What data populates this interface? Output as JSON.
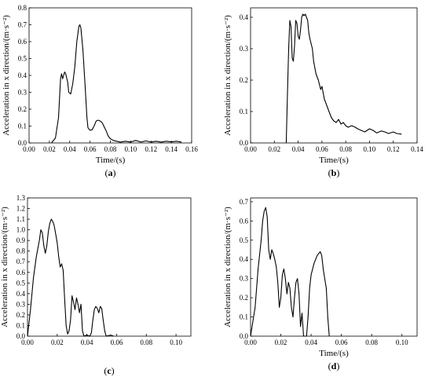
{
  "figure": {
    "background": "#ffffff",
    "line_color": "#000000"
  },
  "chart_data": [
    {
      "type": "line",
      "panel_label": "(a)",
      "panel_letter": "a",
      "xlabel": "Time/(s)",
      "ylabel": "Acceleration in x direction/(m·s⁻²)",
      "xlim": [
        0.0,
        0.16
      ],
      "ylim": [
        0.0,
        0.8
      ],
      "xticks": [
        0.0,
        0.02,
        0.04,
        0.06,
        0.08,
        0.1,
        0.12,
        0.14,
        0.16
      ],
      "xtick_labels": [
        "0.00",
        "0.02",
        "0.04",
        "0.06",
        "0.08",
        "0.10",
        "0.12",
        "0.14",
        "0.16"
      ],
      "yticks": [
        0.0,
        0.1,
        0.2,
        0.3,
        0.4,
        0.5,
        0.6,
        0.7,
        0.8
      ],
      "ytick_labels": [
        "0.0",
        "0.1",
        "0.2",
        "0.3",
        "0.4",
        "0.5",
        "0.6",
        "0.7",
        "0.8"
      ],
      "series": [
        {
          "points": [
            [
              0.022,
              0.0
            ],
            [
              0.026,
              0.03
            ],
            [
              0.029,
              0.15
            ],
            [
              0.031,
              0.38
            ],
            [
              0.032,
              0.41
            ],
            [
              0.033,
              0.38
            ],
            [
              0.034,
              0.4
            ],
            [
              0.035,
              0.42
            ],
            [
              0.036,
              0.41
            ],
            [
              0.038,
              0.36
            ],
            [
              0.039,
              0.3
            ],
            [
              0.041,
              0.29
            ],
            [
              0.043,
              0.35
            ],
            [
              0.045,
              0.45
            ],
            [
              0.047,
              0.6
            ],
            [
              0.049,
              0.69
            ],
            [
              0.05,
              0.7
            ],
            [
              0.051,
              0.68
            ],
            [
              0.053,
              0.55
            ],
            [
              0.055,
              0.35
            ],
            [
              0.057,
              0.15
            ],
            [
              0.058,
              0.09
            ],
            [
              0.06,
              0.075
            ],
            [
              0.062,
              0.078
            ],
            [
              0.064,
              0.1
            ],
            [
              0.066,
              0.13
            ],
            [
              0.068,
              0.135
            ],
            [
              0.07,
              0.13
            ],
            [
              0.072,
              0.12
            ],
            [
              0.074,
              0.095
            ],
            [
              0.076,
              0.07
            ],
            [
              0.078,
              0.04
            ],
            [
              0.08,
              0.025
            ],
            [
              0.083,
              0.015
            ],
            [
              0.086,
              0.01
            ],
            [
              0.09,
              0.005
            ],
            [
              0.095,
              0.01
            ],
            [
              0.1,
              0.005
            ],
            [
              0.105,
              0.015
            ],
            [
              0.11,
              0.005
            ],
            [
              0.115,
              0.012
            ],
            [
              0.12,
              0.005
            ],
            [
              0.125,
              0.01
            ],
            [
              0.13,
              0.005
            ],
            [
              0.135,
              0.01
            ],
            [
              0.14,
              0.006
            ],
            [
              0.145,
              0.01
            ],
            [
              0.15,
              0.005
            ]
          ]
        }
      ]
    },
    {
      "type": "line",
      "panel_label": "(b)",
      "panel_letter": "b",
      "xlabel": "Time/(s)",
      "ylabel": "Acceleration in x direction/(m·s⁻²)",
      "xlim": [
        0.0,
        0.14
      ],
      "ylim": [
        0.0,
        0.43
      ],
      "xticks": [
        0.0,
        0.02,
        0.04,
        0.06,
        0.08,
        0.1,
        0.12,
        0.14
      ],
      "xtick_labels": [
        "0.00",
        "0.02",
        "0.04",
        "0.06",
        "0.08",
        "0.10",
        "0.12",
        "0.14"
      ],
      "yticks": [
        0.0,
        0.1,
        0.2,
        0.3,
        0.4
      ],
      "ytick_labels": [
        "0.0",
        "0.1",
        "0.2",
        "0.3",
        "0.4"
      ],
      "series": [
        {
          "points": [
            [
              0.03,
              0.0
            ],
            [
              0.031,
              0.15
            ],
            [
              0.032,
              0.3
            ],
            [
              0.033,
              0.39
            ],
            [
              0.034,
              0.37
            ],
            [
              0.035,
              0.27
            ],
            [
              0.036,
              0.26
            ],
            [
              0.037,
              0.31
            ],
            [
              0.038,
              0.39
            ],
            [
              0.039,
              0.38
            ],
            [
              0.04,
              0.34
            ],
            [
              0.041,
              0.33
            ],
            [
              0.042,
              0.36
            ],
            [
              0.043,
              0.4
            ],
            [
              0.044,
              0.41
            ],
            [
              0.045,
              0.405
            ],
            [
              0.046,
              0.41
            ],
            [
              0.047,
              0.4
            ],
            [
              0.048,
              0.39
            ],
            [
              0.049,
              0.35
            ],
            [
              0.05,
              0.33
            ],
            [
              0.052,
              0.3
            ],
            [
              0.053,
              0.26
            ],
            [
              0.055,
              0.22
            ],
            [
              0.057,
              0.2
            ],
            [
              0.059,
              0.17
            ],
            [
              0.06,
              0.18
            ],
            [
              0.062,
              0.14
            ],
            [
              0.064,
              0.12
            ],
            [
              0.066,
              0.1
            ],
            [
              0.068,
              0.08
            ],
            [
              0.07,
              0.07
            ],
            [
              0.072,
              0.065
            ],
            [
              0.074,
              0.075
            ],
            [
              0.076,
              0.06
            ],
            [
              0.078,
              0.065
            ],
            [
              0.08,
              0.055
            ],
            [
              0.082,
              0.05
            ],
            [
              0.085,
              0.055
            ],
            [
              0.088,
              0.05
            ],
            [
              0.09,
              0.045
            ],
            [
              0.093,
              0.04
            ],
            [
              0.096,
              0.035
            ],
            [
              0.1,
              0.045
            ],
            [
              0.103,
              0.04
            ],
            [
              0.106,
              0.032
            ],
            [
              0.11,
              0.038
            ],
            [
              0.113,
              0.035
            ],
            [
              0.116,
              0.03
            ],
            [
              0.12,
              0.035
            ],
            [
              0.123,
              0.03
            ],
            [
              0.127,
              0.028
            ]
          ]
        }
      ]
    },
    {
      "type": "line",
      "panel_label": "(c)",
      "panel_letter": "c",
      "xlabel": "",
      "ylabel": "Acceleration in x direction/(m·s⁻²)",
      "xlim": [
        0.0,
        0.11
      ],
      "ylim": [
        0.0,
        1.3
      ],
      "xticks": [
        0.0,
        0.02,
        0.04,
        0.06,
        0.08,
        0.1
      ],
      "xtick_labels": [
        "0.00",
        "0.02",
        "0.04",
        "0.06",
        "0.08",
        "0.10"
      ],
      "yticks": [
        0.0,
        0.1,
        0.2,
        0.3,
        0.4,
        0.5,
        0.6,
        0.7,
        0.8,
        0.9,
        1.0,
        1.1,
        1.2,
        1.3
      ],
      "ytick_labels": [
        "0.0",
        "0.1",
        "0.2",
        "0.3",
        "0.4",
        "0.5",
        "0.6",
        "0.7",
        "0.8",
        "0.9",
        "1.0",
        "1.1",
        "1.2",
        "1.3"
      ],
      "series": [
        {
          "points": [
            [
              0.0,
              0.0
            ],
            [
              0.002,
              0.25
            ],
            [
              0.004,
              0.55
            ],
            [
              0.006,
              0.75
            ],
            [
              0.008,
              0.9
            ],
            [
              0.009,
              1.0
            ],
            [
              0.01,
              0.97
            ],
            [
              0.011,
              0.85
            ],
            [
              0.012,
              0.78
            ],
            [
              0.013,
              0.85
            ],
            [
              0.014,
              0.98
            ],
            [
              0.015,
              1.06
            ],
            [
              0.016,
              1.1
            ],
            [
              0.017,
              1.08
            ],
            [
              0.018,
              1.04
            ],
            [
              0.019,
              0.96
            ],
            [
              0.02,
              0.88
            ],
            [
              0.021,
              0.75
            ],
            [
              0.022,
              0.65
            ],
            [
              0.023,
              0.68
            ],
            [
              0.024,
              0.62
            ],
            [
              0.025,
              0.35
            ],
            [
              0.026,
              0.1
            ],
            [
              0.027,
              0.02
            ],
            [
              0.028,
              0.05
            ],
            [
              0.029,
              0.15
            ],
            [
              0.03,
              0.38
            ],
            [
              0.031,
              0.32
            ],
            [
              0.032,
              0.25
            ],
            [
              0.033,
              0.36
            ],
            [
              0.034,
              0.3
            ],
            [
              0.035,
              0.22
            ],
            [
              0.036,
              0.3
            ],
            [
              0.037,
              0.05
            ],
            [
              0.038,
              0.0
            ],
            [
              0.04,
              0.01
            ],
            [
              0.042,
              0.0
            ],
            [
              0.043,
              0.03
            ],
            [
              0.044,
              0.15
            ],
            [
              0.045,
              0.25
            ],
            [
              0.046,
              0.28
            ],
            [
              0.047,
              0.26
            ],
            [
              0.048,
              0.22
            ],
            [
              0.049,
              0.28
            ],
            [
              0.05,
              0.26
            ],
            [
              0.051,
              0.15
            ],
            [
              0.052,
              0.05
            ],
            [
              0.053,
              0.0
            ],
            [
              0.056,
              0.01
            ],
            [
              0.058,
              0.0
            ]
          ]
        }
      ]
    },
    {
      "type": "line",
      "panel_label": "(d)",
      "panel_letter": "d",
      "xlabel": "Time/(s)",
      "ylabel": "Acceleration in x direction/(m·s⁻²)",
      "xlim": [
        0.0,
        0.11
      ],
      "ylim": [
        0.0,
        0.72
      ],
      "xticks": [
        0.0,
        0.02,
        0.04,
        0.06,
        0.08,
        0.1
      ],
      "xtick_labels": [
        "0.00",
        "0.02",
        "0.04",
        "0.06",
        "0.08",
        "0.10"
      ],
      "yticks": [
        0.0,
        0.1,
        0.2,
        0.3,
        0.4,
        0.5,
        0.6,
        0.7
      ],
      "ytick_labels": [
        "0.0",
        "0.1",
        "0.2",
        "0.3",
        "0.4",
        "0.5",
        "0.6",
        "0.7"
      ],
      "series": [
        {
          "points": [
            [
              0.0,
              0.0
            ],
            [
              0.003,
              0.15
            ],
            [
              0.005,
              0.35
            ],
            [
              0.007,
              0.5
            ],
            [
              0.008,
              0.6
            ],
            [
              0.009,
              0.65
            ],
            [
              0.01,
              0.67
            ],
            [
              0.011,
              0.62
            ],
            [
              0.012,
              0.45
            ],
            [
              0.013,
              0.4
            ],
            [
              0.014,
              0.45
            ],
            [
              0.015,
              0.43
            ],
            [
              0.016,
              0.4
            ],
            [
              0.017,
              0.36
            ],
            [
              0.018,
              0.28
            ],
            [
              0.019,
              0.15
            ],
            [
              0.02,
              0.2
            ],
            [
              0.021,
              0.32
            ],
            [
              0.022,
              0.35
            ],
            [
              0.023,
              0.3
            ],
            [
              0.024,
              0.22
            ],
            [
              0.025,
              0.28
            ],
            [
              0.026,
              0.25
            ],
            [
              0.027,
              0.15
            ],
            [
              0.028,
              0.1
            ],
            [
              0.029,
              0.2
            ],
            [
              0.03,
              0.28
            ],
            [
              0.031,
              0.3
            ],
            [
              0.032,
              0.22
            ],
            [
              0.033,
              0.05
            ],
            [
              0.034,
              0.12
            ],
            [
              0.035,
              0.0
            ],
            [
              0.037,
              0.0
            ],
            [
              0.038,
              0.1
            ],
            [
              0.039,
              0.25
            ],
            [
              0.04,
              0.32
            ],
            [
              0.042,
              0.38
            ],
            [
              0.044,
              0.42
            ],
            [
              0.046,
              0.44
            ],
            [
              0.047,
              0.42
            ],
            [
              0.048,
              0.35
            ],
            [
              0.049,
              0.3
            ],
            [
              0.05,
              0.25
            ],
            [
              0.051,
              0.1
            ],
            [
              0.052,
              0.0
            ]
          ]
        }
      ]
    }
  ]
}
